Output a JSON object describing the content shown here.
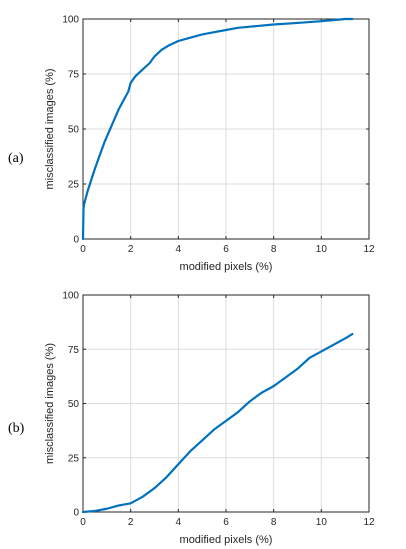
{
  "chart_data": [
    {
      "type": "line",
      "panel_label": "(a)",
      "xlabel": "modified pixels (%)",
      "ylabel": "misclassified images (%)",
      "xlim": [
        0,
        12
      ],
      "ylim": [
        0,
        100
      ],
      "xticks": [
        0,
        2,
        4,
        6,
        8,
        10,
        12
      ],
      "yticks": [
        0,
        25,
        50,
        75,
        100
      ],
      "grid": true,
      "color": "#0072BD",
      "series": [
        {
          "x": [
            0,
            0.02,
            0.05,
            0.1,
            0.2,
            0.35,
            0.5,
            0.7,
            0.9,
            1.1,
            1.3,
            1.5,
            1.7,
            1.9,
            2.0,
            2.2,
            2.5,
            2.8,
            3.0,
            3.3,
            3.6,
            4.0,
            4.5,
            5.0,
            5.5,
            6.0,
            6.5,
            7.0,
            8.0,
            9.0,
            10.0,
            10.5,
            11.0,
            11.3
          ],
          "y": [
            0,
            14,
            16,
            18,
            22,
            27,
            32,
            38,
            44,
            49,
            54,
            59,
            63,
            67,
            71,
            74,
            77,
            80,
            83,
            86,
            88,
            90,
            91.5,
            93,
            94,
            95,
            96,
            96.5,
            97.5,
            98.2,
            99,
            99.5,
            100,
            100
          ]
        }
      ]
    },
    {
      "type": "line",
      "panel_label": "(b)",
      "xlabel": "modified pixels (%)",
      "ylabel": "misclassified images (%)",
      "xlim": [
        0,
        12
      ],
      "ylim": [
        0,
        100
      ],
      "xticks": [
        0,
        2,
        4,
        6,
        8,
        10,
        12
      ],
      "yticks": [
        0,
        25,
        50,
        75,
        100
      ],
      "grid": true,
      "color": "#0072BD",
      "series": [
        {
          "x": [
            0,
            0.5,
            1.0,
            1.5,
            2.0,
            2.5,
            3.0,
            3.5,
            4.0,
            4.5,
            5.0,
            5.5,
            6.0,
            6.5,
            7.0,
            7.5,
            8.0,
            8.5,
            9.0,
            9.5,
            10.0,
            10.5,
            11.0,
            11.3
          ],
          "y": [
            0,
            0.5,
            1.5,
            3,
            4,
            7,
            11,
            16,
            22,
            28,
            33,
            38,
            42,
            46,
            51,
            55,
            58,
            62,
            66,
            71,
            74,
            77,
            80,
            82
          ]
        }
      ]
    }
  ]
}
